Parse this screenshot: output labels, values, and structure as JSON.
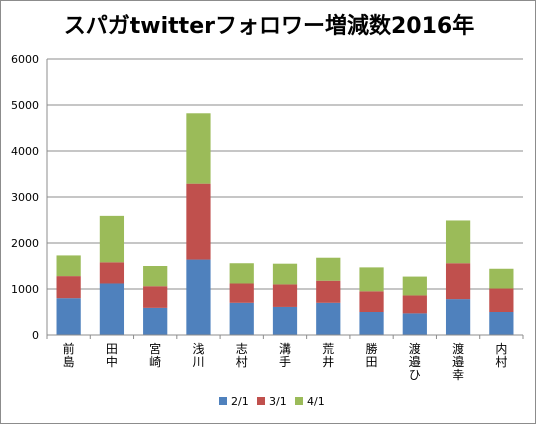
{
  "chart_data": {
    "type": "bar",
    "stacked": true,
    "title": "スパガtwitterフォロワー増減数2016年",
    "categories": [
      "前島",
      "田中",
      "宮崎",
      "浅川",
      "志村",
      "溝手",
      "荒井",
      "勝田",
      "渡邉ひ",
      "渡邉幸",
      "内村"
    ],
    "series": [
      {
        "name": "2/1",
        "color": "#4f81bd",
        "values": [
          800,
          1120,
          590,
          1640,
          700,
          610,
          700,
          500,
          470,
          780,
          500
        ]
      },
      {
        "name": "3/1",
        "color": "#c0504d",
        "values": [
          480,
          460,
          470,
          1650,
          420,
          490,
          480,
          450,
          390,
          780,
          510
        ]
      },
      {
        "name": "4/1",
        "color": "#9bbb59",
        "values": [
          450,
          1010,
          440,
          1530,
          440,
          450,
          500,
          520,
          410,
          930,
          430
        ]
      }
    ],
    "ylim": [
      0,
      6000
    ],
    "yticks": [
      0,
      1000,
      2000,
      3000,
      4000,
      5000,
      6000
    ],
    "grid": true,
    "legend": "bottom"
  }
}
